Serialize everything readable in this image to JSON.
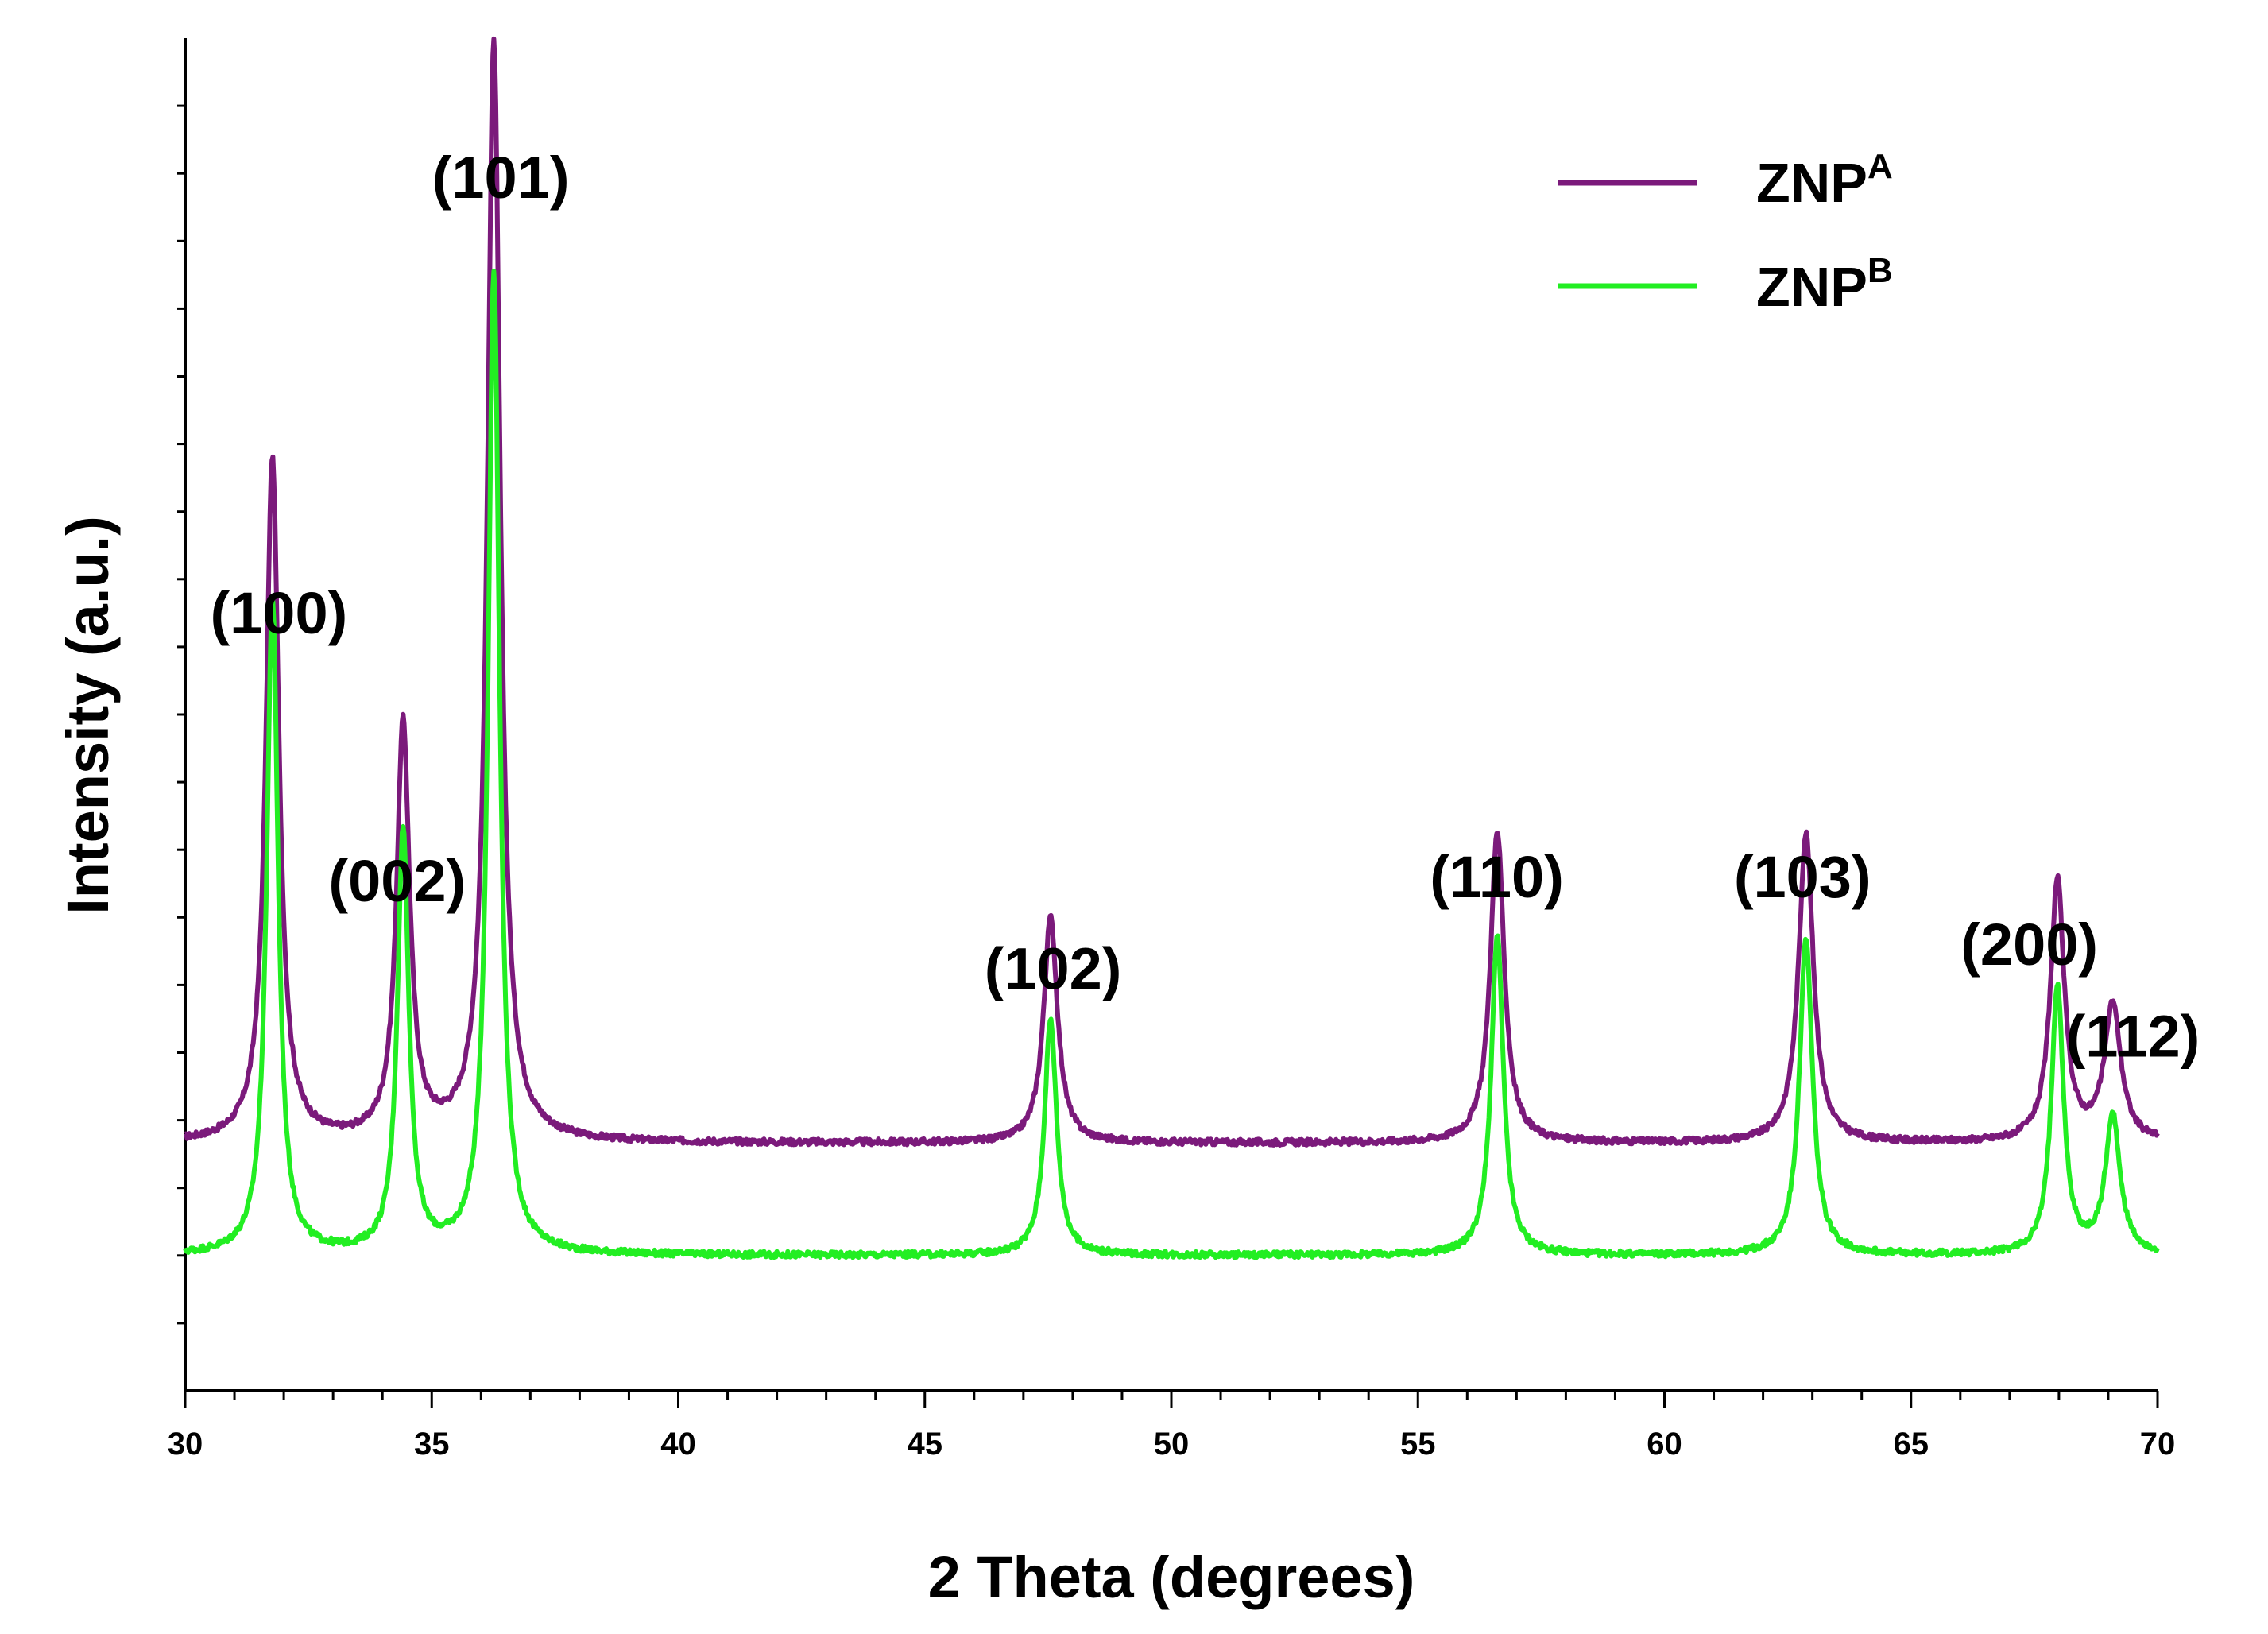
{
  "chart_data": {
    "type": "line",
    "xlabel": "2 Theta (degrees)",
    "ylabel": "Intensity (a.u.)",
    "xlim": [
      30,
      70
    ],
    "ylim": [
      0,
      100
    ],
    "xticks": [
      "30",
      "35",
      "40",
      "45",
      "50",
      "55",
      "60",
      "65",
      "70"
    ],
    "grid": false,
    "legend_position": "top-right",
    "series": [
      {
        "name": "ZNP",
        "name_superscript": "A",
        "color": "#7b1a7b",
        "baseline": 18.3,
        "peaks": [
          {
            "x": 31.77,
            "height": 50.6,
            "width": 0.16
          },
          {
            "x": 34.42,
            "height": 30.7,
            "width": 0.16
          },
          {
            "x": 36.26,
            "height": 81.2,
            "width": 0.16
          },
          {
            "x": 47.55,
            "height": 16.7,
            "width": 0.17
          },
          {
            "x": 56.61,
            "height": 23.0,
            "width": 0.17
          },
          {
            "x": 62.87,
            "height": 22.9,
            "width": 0.18
          },
          {
            "x": 67.97,
            "height": 19.3,
            "width": 0.17
          },
          {
            "x": 69.09,
            "height": 10.1,
            "width": 0.2
          }
        ]
      },
      {
        "name": "ZNP",
        "name_superscript": "B",
        "color": "#22ee22",
        "baseline": 10.0,
        "peaks": [
          {
            "x": 31.77,
            "height": 48.5,
            "width": 0.14
          },
          {
            "x": 34.42,
            "height": 31.2,
            "width": 0.14
          },
          {
            "x": 36.26,
            "height": 72.6,
            "width": 0.14
          },
          {
            "x": 47.55,
            "height": 17.4,
            "width": 0.15
          },
          {
            "x": 56.61,
            "height": 23.6,
            "width": 0.15
          },
          {
            "x": 62.87,
            "height": 23.3,
            "width": 0.16
          },
          {
            "x": 67.97,
            "height": 19.9,
            "width": 0.15
          },
          {
            "x": 69.09,
            "height": 10.2,
            "width": 0.18
          }
        ]
      }
    ],
    "annotations": [
      {
        "text": "(100)",
        "x": 31.9,
        "y": 56.0
      },
      {
        "text": "(002)",
        "x": 34.3,
        "y": 36.2
      },
      {
        "text": "(101)",
        "x": 36.4,
        "y": 88.2
      },
      {
        "text": "(102)",
        "x": 47.6,
        "y": 29.7
      },
      {
        "text": "(110)",
        "x": 56.6,
        "y": 36.5
      },
      {
        "text": "(103)",
        "x": 62.8,
        "y": 36.5
      },
      {
        "text": "(200)",
        "x": 67.4,
        "y": 31.5
      },
      {
        "text": "(112)",
        "x": 69.5,
        "y": 24.7
      }
    ]
  }
}
